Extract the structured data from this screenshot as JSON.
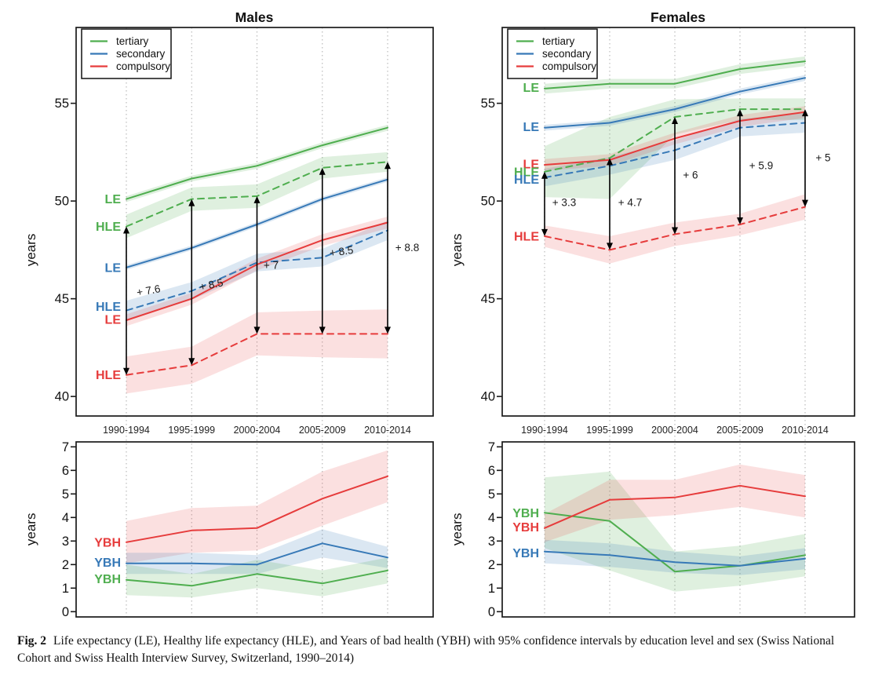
{
  "figure": {
    "caption_label": "Fig. 2",
    "caption_text": "Life expectancy (LE), Healthy life expectancy (HLE), and Years of bad health (YBH) with 95% confidence intervals by education level and sex (Swiss National Cohort and Swiss Health Interview Survey, Switzerland, 1990–2014)"
  },
  "colors": {
    "line": {
      "tertiary": "#4fae4f",
      "secondary": "#3779b7",
      "compulsory": "#e63c3c"
    },
    "band": {
      "tertiary": "rgba(79,174,79,0.18)",
      "secondary": "rgba(55,121,183,0.18)",
      "compulsory": "rgba(230,60,60,0.16)"
    },
    "grid": "#b5b5b5",
    "axis": "#1a1a1a",
    "arrow": "#000000",
    "annotation": "#1a1a1a"
  },
  "legend": {
    "items": [
      {
        "label": "tertiary",
        "key": "tertiary"
      },
      {
        "label": "secondary",
        "key": "secondary"
      },
      {
        "label": "compulsory",
        "key": "compulsory"
      }
    ]
  },
  "periods": [
    "1990-1994",
    "1995-1999",
    "2000-2004",
    "2005-2009",
    "2010-2014"
  ],
  "chart_data": [
    {
      "id": "males-le-hle",
      "type": "line",
      "col": "left",
      "row": "top",
      "title": "Males",
      "ylabel": "years",
      "ylim": [
        39,
        58.9
      ],
      "yticks": [
        40,
        45,
        50,
        55
      ],
      "x_categories": [
        "1990-1994",
        "1995-1999",
        "2000-2004",
        "2005-2009",
        "2010-2014"
      ],
      "show_legend": true,
      "show_x_labels": true,
      "series": [
        {
          "name": "LE tertiary",
          "education": "tertiary",
          "measure": "LE",
          "style": "solid",
          "values": [
            50.1,
            51.15,
            51.8,
            52.85,
            53.75
          ],
          "ci": [
            0.15,
            0.15,
            0.15,
            0.15,
            0.15
          ]
        },
        {
          "name": "HLE tertiary",
          "education": "tertiary",
          "measure": "HLE",
          "style": "dashed",
          "values": [
            48.7,
            50.1,
            50.25,
            51.7,
            52.0
          ],
          "ci": [
            0.6,
            0.6,
            0.6,
            0.55,
            0.5
          ]
        },
        {
          "name": "LE secondary",
          "education": "secondary",
          "measure": "LE",
          "style": "solid",
          "values": [
            46.6,
            47.6,
            48.8,
            50.1,
            51.1
          ],
          "ci": [
            0.12,
            0.12,
            0.12,
            0.12,
            0.12
          ]
        },
        {
          "name": "HLE secondary",
          "education": "secondary",
          "measure": "HLE",
          "style": "dashed",
          "values": [
            44.4,
            45.4,
            46.85,
            47.1,
            48.5
          ],
          "ci": [
            0.5,
            0.45,
            0.45,
            0.45,
            0.5
          ]
        },
        {
          "name": "LE compulsory",
          "education": "compulsory",
          "measure": "LE",
          "style": "solid",
          "values": [
            43.9,
            45.0,
            46.75,
            48.0,
            48.9
          ],
          "ci": [
            0.3,
            0.3,
            0.3,
            0.3,
            0.3
          ]
        },
        {
          "name": "HLE compulsory",
          "education": "compulsory",
          "measure": "HLE",
          "style": "dashed",
          "values": [
            41.1,
            41.6,
            43.2,
            43.2,
            43.2
          ],
          "ci": [
            0.95,
            0.95,
            1.1,
            1.2,
            1.25
          ]
        }
      ],
      "line_labels": [
        {
          "text": "LE",
          "key": "tertiary",
          "value": 50.1
        },
        {
          "text": "HLE",
          "key": "tertiary",
          "value": 48.7
        },
        {
          "text": "LE",
          "key": "secondary",
          "value": 46.6
        },
        {
          "text": "HLE",
          "key": "secondary",
          "value": 44.6
        },
        {
          "text": "LE",
          "key": "compulsory",
          "value": 43.95
        },
        {
          "text": "HLE",
          "key": "compulsory",
          "value": 41.1
        }
      ],
      "arrows": [
        {
          "x_index": 0,
          "low": 41.1,
          "high": 48.7,
          "label": "+ 7.6",
          "label_dx": 29,
          "label_value": 45.4,
          "rotate": -10
        },
        {
          "x_index": 1,
          "low": 41.6,
          "high": 50.1,
          "label": "+ 8.5",
          "label_dx": 26,
          "label_value": 45.7,
          "rotate": -12
        },
        {
          "x_index": 2,
          "low": 43.2,
          "high": 50.25,
          "label": "+ 7",
          "label_dx": 18,
          "label_value": 46.7,
          "rotate": 0
        },
        {
          "x_index": 3,
          "low": 43.2,
          "high": 51.7,
          "label": "+ 8.5",
          "label_dx": 25,
          "label_value": 47.4,
          "rotate": -8
        },
        {
          "x_index": 4,
          "low": 43.2,
          "high": 52.0,
          "label": "+ 8.8",
          "label_dx": 25,
          "label_value": 47.6,
          "rotate": 0
        }
      ]
    },
    {
      "id": "females-le-hle",
      "type": "line",
      "col": "right",
      "row": "top",
      "title": "Females",
      "ylabel": "years",
      "ylim": [
        39,
        58.9
      ],
      "yticks": [
        40,
        45,
        50,
        55
      ],
      "x_categories": [
        "1990-1994",
        "1995-1999",
        "2000-2004",
        "2005-2009",
        "2010-2014"
      ],
      "show_legend": true,
      "show_x_labels": true,
      "series": [
        {
          "name": "LE tertiary",
          "education": "tertiary",
          "measure": "LE",
          "style": "solid",
          "values": [
            55.75,
            56.0,
            56.0,
            56.75,
            57.15
          ],
          "ci": [
            0.25,
            0.25,
            0.25,
            0.25,
            0.25
          ]
        },
        {
          "name": "HLE tertiary",
          "education": "tertiary",
          "measure": "HLE",
          "style": "dashed",
          "values": [
            51.5,
            52.2,
            54.3,
            54.7,
            54.7
          ],
          "ci": [
            1.3,
            2.1,
            0.9,
            0.55,
            0.55
          ]
        },
        {
          "name": "LE secondary",
          "education": "secondary",
          "measure": "LE",
          "style": "solid",
          "values": [
            53.75,
            54.0,
            54.7,
            55.6,
            56.3
          ],
          "ci": [
            0.15,
            0.15,
            0.15,
            0.15,
            0.15
          ]
        },
        {
          "name": "HLE secondary",
          "education": "secondary",
          "measure": "HLE",
          "style": "dashed",
          "values": [
            51.2,
            51.8,
            52.6,
            53.75,
            54.0
          ],
          "ci": [
            0.45,
            0.45,
            0.5,
            0.45,
            0.5
          ]
        },
        {
          "name": "LE compulsory",
          "education": "compulsory",
          "measure": "LE",
          "style": "solid",
          "values": [
            51.85,
            52.1,
            53.2,
            54.1,
            54.55
          ],
          "ci": [
            0.3,
            0.3,
            0.3,
            0.3,
            0.3
          ]
        },
        {
          "name": "HLE compulsory",
          "education": "compulsory",
          "measure": "HLE",
          "style": "dashed",
          "values": [
            48.2,
            47.5,
            48.3,
            48.8,
            49.7
          ],
          "ci": [
            0.55,
            0.7,
            0.6,
            0.55,
            0.65
          ]
        }
      ],
      "line_labels": [
        {
          "text": "LE",
          "key": "tertiary",
          "value": 55.8
        },
        {
          "text": "LE",
          "key": "secondary",
          "value": 53.8
        },
        {
          "text": "LE",
          "key": "compulsory",
          "value": 51.9
        },
        {
          "text": "HLE",
          "key": "tertiary",
          "value": 51.5
        },
        {
          "text": "HLE",
          "key": "secondary",
          "value": 51.1
        },
        {
          "text": "HLE",
          "key": "compulsory",
          "value": 48.2
        }
      ],
      "arrows": [
        {
          "x_index": 0,
          "low": 48.2,
          "high": 51.5,
          "label": "+ 3.3",
          "label_dx": 25,
          "label_value": 49.9,
          "rotate": 0
        },
        {
          "x_index": 1,
          "low": 47.5,
          "high": 52.2,
          "label": "+ 4.7",
          "label_dx": 26,
          "label_value": 49.9,
          "rotate": 0
        },
        {
          "x_index": 2,
          "low": 48.3,
          "high": 54.3,
          "label": "+ 6",
          "label_dx": 20,
          "label_value": 51.3,
          "rotate": 0
        },
        {
          "x_index": 3,
          "low": 48.8,
          "high": 54.7,
          "label": "+ 5.9",
          "label_dx": 27,
          "label_value": 51.8,
          "rotate": 0
        },
        {
          "x_index": 4,
          "low": 49.7,
          "high": 54.7,
          "label": "+ 5",
          "label_dx": 23,
          "label_value": 52.2,
          "rotate": 0
        }
      ]
    },
    {
      "id": "males-ybh",
      "type": "line",
      "col": "left",
      "row": "bottom",
      "title": null,
      "ylabel": "years",
      "ylim": [
        -0.2,
        7.2
      ],
      "yticks": [
        0,
        1,
        2,
        3,
        4,
        5,
        6,
        7
      ],
      "x_categories": [
        "1990-1994",
        "1995-1999",
        "2000-2004",
        "2005-2009",
        "2010-2014"
      ],
      "show_legend": false,
      "show_x_labels": false,
      "series": [
        {
          "name": "YBH compulsory",
          "education": "compulsory",
          "measure": "YBH",
          "style": "solid",
          "values": [
            2.95,
            3.45,
            3.55,
            4.8,
            5.75
          ],
          "ci": [
            0.9,
            0.95,
            0.95,
            1.15,
            1.1
          ]
        },
        {
          "name": "YBH secondary",
          "education": "secondary",
          "measure": "YBH",
          "style": "solid",
          "values": [
            2.05,
            2.05,
            2.0,
            2.9,
            2.3
          ],
          "ci": [
            0.45,
            0.45,
            0.4,
            0.6,
            0.45
          ]
        },
        {
          "name": "YBH tertiary",
          "education": "tertiary",
          "measure": "YBH",
          "style": "solid",
          "values": [
            1.35,
            1.1,
            1.6,
            1.2,
            1.75
          ],
          "ci": [
            0.65,
            0.5,
            0.6,
            0.55,
            0.55
          ]
        }
      ],
      "line_labels": [
        {
          "text": "YBH",
          "key": "compulsory",
          "value": 2.95
        },
        {
          "text": "YBH",
          "key": "secondary",
          "value": 2.1
        },
        {
          "text": "YBH",
          "key": "tertiary",
          "value": 1.4
        }
      ],
      "arrows": []
    },
    {
      "id": "females-ybh",
      "type": "line",
      "col": "right",
      "row": "bottom",
      "title": null,
      "ylabel": "years",
      "ylim": [
        -0.2,
        7.2
      ],
      "yticks": [
        0,
        1,
        2,
        3,
        4,
        5,
        6,
        7
      ],
      "x_categories": [
        "1990-1994",
        "1995-1999",
        "2000-2004",
        "2005-2009",
        "2010-2014"
      ],
      "show_legend": false,
      "show_x_labels": false,
      "series": [
        {
          "name": "YBH tertiary",
          "education": "tertiary",
          "measure": "YBH",
          "style": "solid",
          "values": [
            4.2,
            3.85,
            1.7,
            1.95,
            2.4
          ],
          "ci": [
            1.5,
            2.1,
            0.85,
            0.85,
            0.9
          ]
        },
        {
          "name": "YBH compulsory",
          "education": "compulsory",
          "measure": "YBH",
          "style": "solid",
          "values": [
            3.55,
            4.75,
            4.85,
            5.35,
            4.9
          ],
          "ci": [
            0.6,
            0.85,
            0.75,
            0.9,
            0.9
          ]
        },
        {
          "name": "YBH secondary",
          "education": "secondary",
          "measure": "YBH",
          "style": "solid",
          "values": [
            2.55,
            2.4,
            2.1,
            1.95,
            2.25
          ],
          "ci": [
            0.5,
            0.5,
            0.45,
            0.4,
            0.45
          ]
        }
      ],
      "line_labels": [
        {
          "text": "YBH",
          "key": "tertiary",
          "value": 4.2
        },
        {
          "text": "YBH",
          "key": "compulsory",
          "value": 3.6
        },
        {
          "text": "YBH",
          "key": "secondary",
          "value": 2.5
        }
      ],
      "arrows": []
    }
  ]
}
